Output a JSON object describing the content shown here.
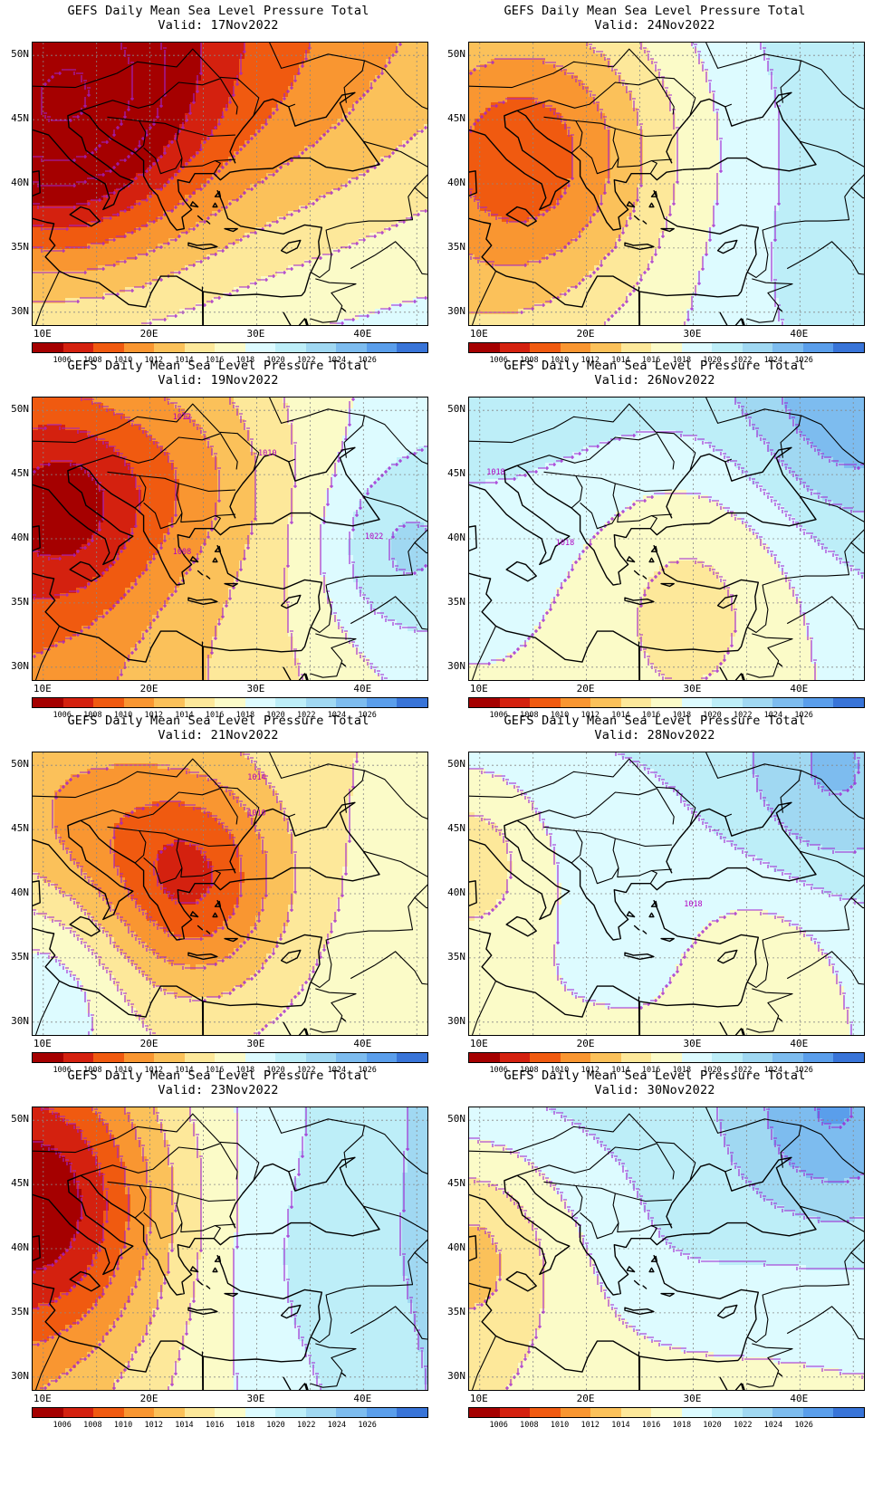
{
  "title_line": "GEFS Daily Mean Sea Level Pressure Total",
  "palette": {
    "colors": [
      "#a50000",
      "#d4210f",
      "#f05a10",
      "#f99631",
      "#fbc15a",
      "#fde89a",
      "#fbfbc8",
      "#ddfbff",
      "#bdeef8",
      "#a0d8f2",
      "#7dbcef",
      "#5a9eeb",
      "#3874d8"
    ],
    "labels": [
      "1006",
      "1008",
      "1010",
      "1012",
      "1014",
      "1016",
      "1018",
      "1020",
      "1022",
      "1024",
      "1026"
    ]
  },
  "axes": {
    "lat_labels": [
      "50N",
      "45N",
      "40N",
      "35N",
      "30N"
    ],
    "lon_labels": [
      "10E",
      "20E",
      "30E",
      "40E"
    ]
  },
  "panels": [
    {
      "valid": "Valid: 17Nov2022",
      "date": "17Nov2022",
      "contour_labels": []
    },
    {
      "valid": "Valid: 24Nov2022",
      "date": "24Nov2022",
      "contour_labels": []
    },
    {
      "valid": "Valid: 19Nov2022",
      "date": "19Nov2022",
      "contour_labels": [
        "1012",
        "1010",
        "1022",
        "1008"
      ]
    },
    {
      "valid": "Valid: 26Nov2022",
      "date": "26Nov2022",
      "contour_labels": [
        "1018",
        "1018"
      ]
    },
    {
      "valid": "Valid: 21Nov2022",
      "date": "21Nov2022",
      "contour_labels": [
        "1014",
        "1010"
      ]
    },
    {
      "valid": "Valid: 28Nov2022",
      "date": "28Nov2022",
      "contour_labels": [
        "1018"
      ]
    },
    {
      "valid": "Valid: 23Nov2022",
      "date": "23Nov2022",
      "contour_labels": []
    },
    {
      "valid": "Valid: 30Nov2022",
      "date": "30Nov2022",
      "contour_labels": []
    }
  ]
}
